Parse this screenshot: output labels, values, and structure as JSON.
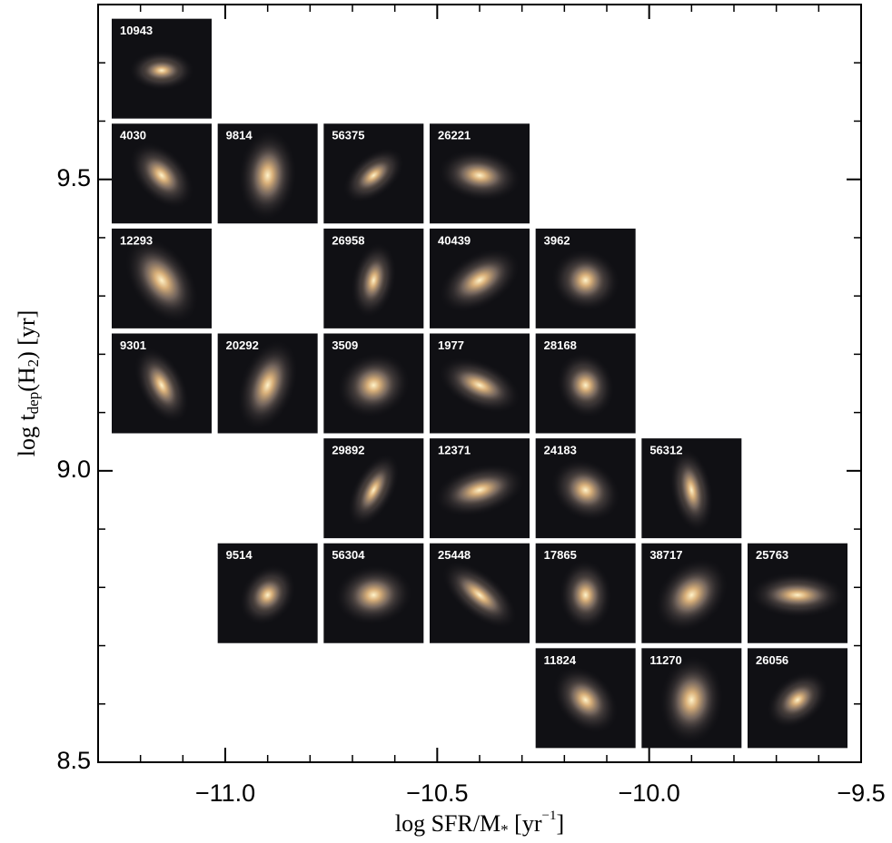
{
  "chart_data": {
    "type": "scatter",
    "x": [
      -11.15,
      -11.15,
      -10.9,
      -10.65,
      -10.4,
      -11.15,
      -10.65,
      -10.4,
      -10.15,
      -11.15,
      -10.9,
      -10.65,
      -10.4,
      -10.15,
      -10.65,
      -10.4,
      -10.15,
      -9.9,
      -10.9,
      -10.65,
      -10.4,
      -10.15,
      -9.9,
      -9.65,
      -10.15,
      -9.9,
      -9.65
    ],
    "y": [
      9.69,
      9.51,
      9.51,
      9.51,
      9.51,
      9.33,
      9.33,
      9.33,
      9.33,
      9.15,
      9.15,
      9.15,
      9.15,
      9.15,
      8.97,
      8.97,
      8.97,
      8.97,
      8.79,
      8.79,
      8.79,
      8.79,
      8.79,
      8.79,
      8.61,
      8.61,
      8.61
    ],
    "point_labels": [
      "10943",
      "4030",
      "9814",
      "56375",
      "26221",
      "12293",
      "26958",
      "40439",
      "3962",
      "9301",
      "20292",
      "3509",
      "1977",
      "28168",
      "29892",
      "12371",
      "24183",
      "56312",
      "9514",
      "56304",
      "25448",
      "17865",
      "38717",
      "25763",
      "11824",
      "11270",
      "26056"
    ],
    "xlim": [
      -11.3,
      -9.5
    ],
    "ylim": [
      8.5,
      9.8
    ],
    "xticks": [
      {
        "value": -11.0,
        "label": "−11.0"
      },
      {
        "value": -10.5,
        "label": "−10.5"
      },
      {
        "value": -10.0,
        "label": "−10.0"
      },
      {
        "value": -9.5,
        "label": "−9.5"
      }
    ],
    "yticks": [
      8.5,
      {
        "value": 9.0,
        "label": "9.0"
      },
      9.5
    ],
    "xminorticks": [
      -11.2,
      -11.1,
      -10.9,
      -10.8,
      -10.7,
      -10.6,
      -10.4,
      -10.3,
      -10.2,
      -10.1,
      -9.9,
      -9.8,
      -9.7,
      -9.6
    ],
    "yminorticks": [
      8.6,
      8.7,
      8.8,
      8.9,
      9.1,
      9.2,
      9.3,
      9.4,
      9.6,
      9.7
    ],
    "xlabel_parts": [
      {
        "text": "log SFR/M"
      },
      {
        "text": "*",
        "sub": true
      },
      {
        "text": " [yr"
      },
      {
        "text": "−1",
        "sup": true
      },
      {
        "text": "]"
      }
    ],
    "ylabel_parts": [
      {
        "text": "log t"
      },
      {
        "text": "dep",
        "sub": true
      },
      {
        "text": "(H"
      },
      {
        "text": "2",
        "sub": true
      },
      {
        "text": ") [yr]"
      }
    ]
  }
}
